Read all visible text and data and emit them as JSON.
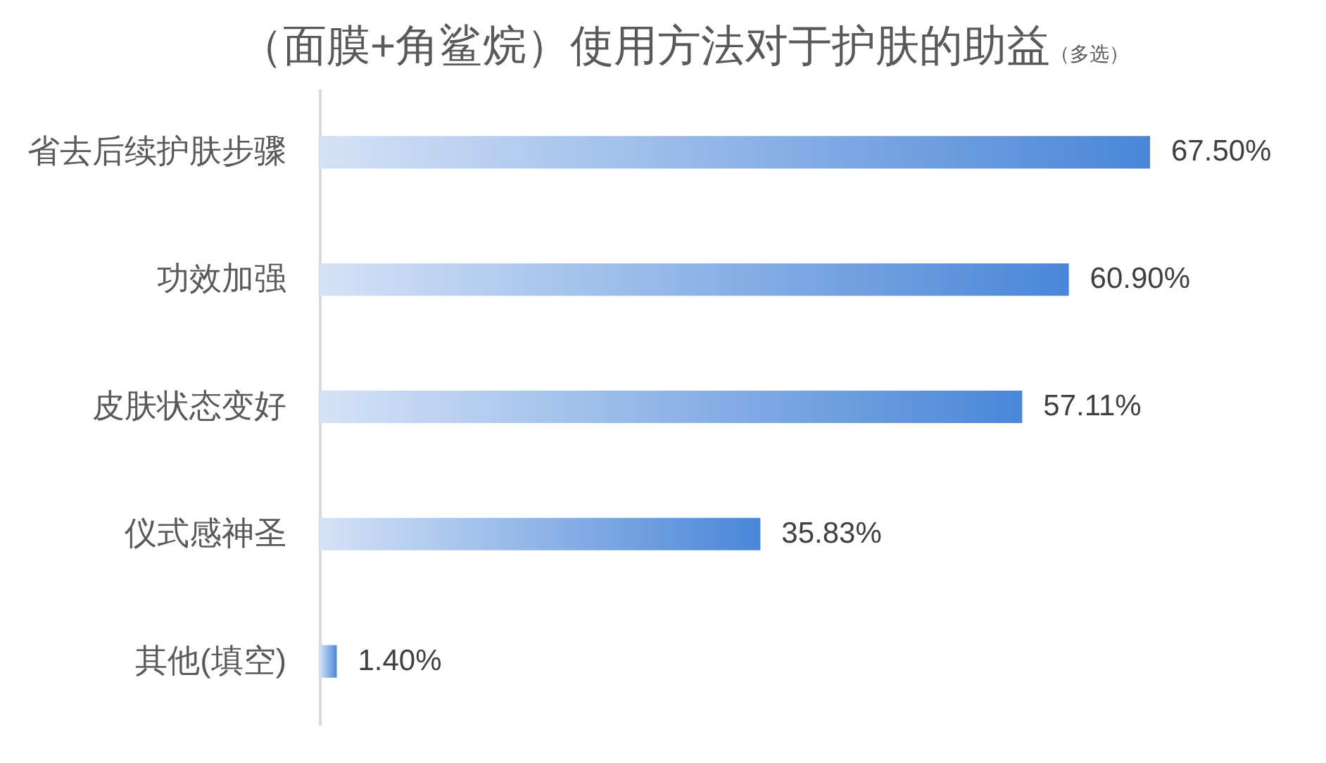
{
  "chart_data": {
    "type": "bar",
    "orientation": "horizontal",
    "title": "（面膜+角鲨烷）使用方法对于护肤的助益",
    "subtitle": "（多选）",
    "categories": [
      "省去后续护肤步骤",
      "功效加强",
      "皮肤状态变好",
      "仪式感神圣",
      "其他(填空)"
    ],
    "values": [
      67.5,
      60.9,
      57.11,
      35.83,
      1.4
    ],
    "value_labels": [
      "67.50%",
      "60.90%",
      "57.11%",
      "35.83%",
      "1.40%"
    ],
    "color": "#4a86d8",
    "tick_labels": "y"
  }
}
